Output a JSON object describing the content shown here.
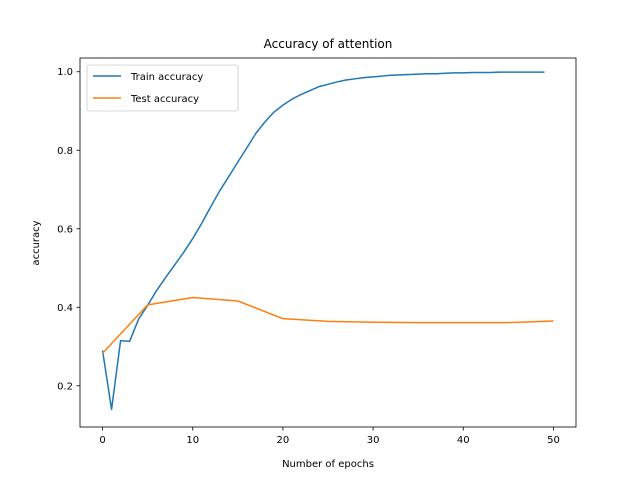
{
  "chart_data": {
    "type": "line",
    "title": "Accuracy of attention",
    "xlabel": "Number of epochs",
    "ylabel": "accuracy",
    "xlim": [
      -2.5,
      52.5
    ],
    "ylim": [
      0.095,
      1.035
    ],
    "xticks": [
      0,
      10,
      20,
      30,
      40,
      50
    ],
    "yticks": [
      0.2,
      0.4,
      0.6,
      0.8,
      1.0
    ],
    "ytick_labels": [
      "0.2",
      "0.4",
      "0.6",
      "0.8",
      "1.0"
    ],
    "grid": false,
    "legend_position": "upper-left",
    "series": [
      {
        "name": "Train accuracy",
        "color": "#1f77b4",
        "x": [
          0,
          1,
          2,
          3,
          4,
          5,
          6,
          7,
          8,
          9,
          10,
          11,
          12,
          13,
          14,
          15,
          16,
          17,
          18,
          19,
          20,
          21,
          22,
          23,
          24,
          25,
          26,
          27,
          28,
          29,
          30,
          31,
          32,
          33,
          34,
          35,
          36,
          37,
          38,
          39,
          40,
          41,
          42,
          43,
          44,
          45,
          46,
          47,
          48,
          49
        ],
        "y": [
          0.29,
          0.14,
          0.315,
          0.313,
          0.37,
          0.405,
          0.443,
          0.476,
          0.508,
          0.54,
          0.575,
          0.614,
          0.656,
          0.697,
          0.733,
          0.77,
          0.806,
          0.843,
          0.872,
          0.897,
          0.915,
          0.93,
          0.942,
          0.952,
          0.962,
          0.968,
          0.974,
          0.979,
          0.982,
          0.985,
          0.987,
          0.989,
          0.991,
          0.992,
          0.993,
          0.994,
          0.995,
          0.995,
          0.996,
          0.997,
          0.997,
          0.998,
          0.998,
          0.998,
          0.999,
          0.999,
          0.999,
          0.999,
          0.999,
          0.999
        ]
      },
      {
        "name": "Test accuracy",
        "color": "#ff7f0e",
        "x": [
          0,
          5,
          10,
          15,
          20,
          25,
          30,
          35,
          40,
          45,
          50
        ],
        "y": [
          0.283,
          0.406,
          0.425,
          0.416,
          0.371,
          0.364,
          0.362,
          0.361,
          0.361,
          0.361,
          0.365
        ]
      }
    ]
  }
}
